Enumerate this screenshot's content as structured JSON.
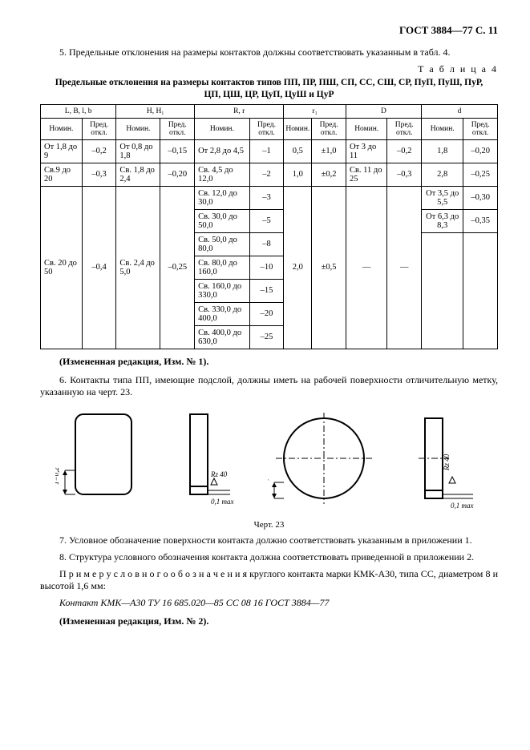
{
  "header": "ГОСТ 3884—77 С. 11",
  "para5": "5. Предельные отклонения на размеры контактов должны соответствовать указанным в табл. 4.",
  "table_label": "Т а б л и ц а  4",
  "table_title_l1": "Предельные отклонения на размеры контактов типов ПП, ПР, ПШ, СП, СС, СШ, СР, ПуП, ПуШ, ПуР,",
  "table_title_l2": "ЦП, ЦШ, ЦР, ЦуП, ЦуШ и ЦуР",
  "cols": {
    "g1": "L,  B,  l,  b",
    "g2": "H,  H₁",
    "g3": "R,  r",
    "g4": "r₁",
    "g5": "D",
    "g6": "d",
    "nom": "Номин.",
    "dev": "Пред. откл."
  },
  "rows": [
    {
      "c1": "От 1,8 до 9",
      "c2": "–0,2",
      "c3": "От 0,8 до 1,8",
      "c4": "–0,15",
      "c5": "От 2,8 до 4,5",
      "c6": "–1",
      "c7": "0,5",
      "c8": "±1,0",
      "c9": "От 3 до 11",
      "c10": "–0,2",
      "c11": "1,8",
      "c12": "–0,20"
    },
    {
      "c1": "Св.9 до 20",
      "c2": "–0,3",
      "c3": "Св. 1,8 до 2,4",
      "c4": "–0,20",
      "c5": "Св. 4,5 до 12,0",
      "c6": "–2",
      "c7": "1,0",
      "c8": "±0,2",
      "c9": "Св. 11 до 25",
      "c10": "–0,3",
      "c11": "2,8",
      "c12": "–0,25"
    },
    {
      "c1": "Св. 20 до 50",
      "c2": "–0,4",
      "c3": "Св. 2,4 до 5,0",
      "c4": "–0,25",
      "c5": "Св. 12,0 до 30,0",
      "c6": "–3",
      "c7": "2,0",
      "c8": "±0,5",
      "c9": "—",
      "c10": "—",
      "c11": "От 3,5 до 5,5",
      "c12": "–0,30"
    },
    {
      "c5": "Св. 30,0 до 50,0",
      "c6": "–5",
      "c11": "От 6,3 до 8,3",
      "c12": "–0,35"
    },
    {
      "c5": "Св. 50,0 до 80,0",
      "c6": "–8"
    },
    {
      "c5": "Св. 80,0 до 160,0",
      "c6": "–10"
    },
    {
      "c5": "Св. 160,0 до 330,0",
      "c6": "–15"
    },
    {
      "c5": "Св. 330,0 до 400,0",
      "c6": "–20"
    },
    {
      "c5": "Св. 400,0 до 630,0",
      "c6": "–25"
    }
  ],
  "note1": "(Измененная редакция, Изм. № 1).",
  "para6": "6. Контакты типа ПП, имеющие подслой, должны иметь на рабочей поверхности отличительную метку, указанную на черт. 23.",
  "fig_cap": "Черт. 23",
  "para7": "7. Условное обозначение поверхности контакта должно соответствовать указанным в приложении 1.",
  "para8": "8. Структура условного обозначения контакта должна соответствовать приведенной в приложении 2.",
  "example_intro": "П р и м е р   у с л о в н о г о   о б о з н а ч е н и я  круглого контакта марки КМК-А30, типа СС, диаметром 8 и высотой 1,6 мм:",
  "example_line": "Контакт КМК—А30 ТУ 16 685.020—85 СС 08 16 ГОСТ 3884—77",
  "note2": "(Измененная редакция, Изм. № 2).",
  "svg": {
    "t_label": "1−0,2",
    "rz": "Rz 40",
    "max": "0,1 max"
  }
}
